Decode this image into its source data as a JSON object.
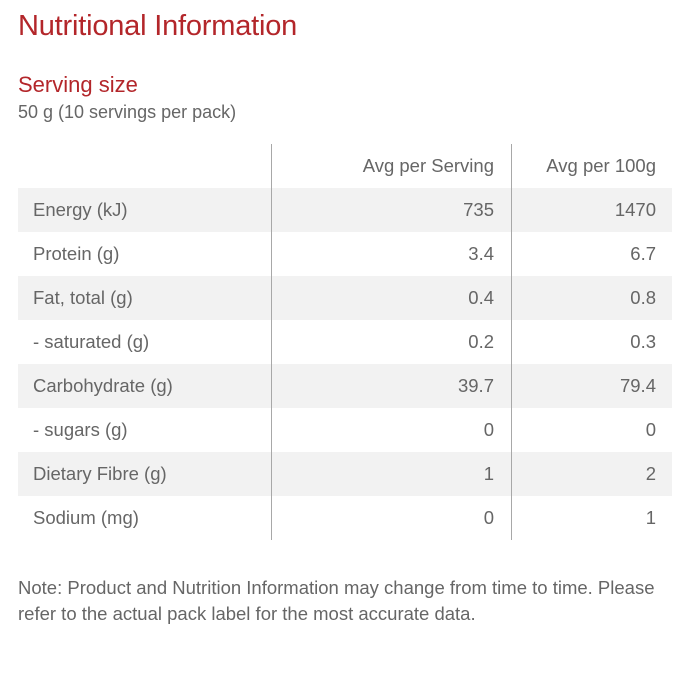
{
  "title": "Nutritional Information",
  "serving": {
    "heading": "Serving size",
    "value": "50 g (10 servings per pack)"
  },
  "table": {
    "headers": [
      "",
      "Avg per Serving",
      "Avg per 100g"
    ],
    "rows": [
      {
        "name": "Energy (kJ)",
        "serving": "735",
        "per100": "1470"
      },
      {
        "name": "Protein (g)",
        "serving": "3.4",
        "per100": "6.7"
      },
      {
        "name": "Fat, total (g)",
        "serving": "0.4",
        "per100": "0.8"
      },
      {
        "name": "- saturated (g)",
        "serving": "0.2",
        "per100": "0.3"
      },
      {
        "name": "Carbohydrate (g)",
        "serving": "39.7",
        "per100": "79.4"
      },
      {
        "name": "- sugars (g)",
        "serving": "0",
        "per100": "0"
      },
      {
        "name": "Dietary Fibre (g)",
        "serving": "1",
        "per100": "2"
      },
      {
        "name": "Sodium (mg)",
        "serving": "0",
        "per100": "1"
      }
    ]
  },
  "note": "Note: Product and Nutrition Information may change from time to time. Please refer to the actual pack label for the most accurate data.",
  "colors": {
    "heading": "#b3262a",
    "text": "#666666",
    "row_shade": "#f2f2f2",
    "divider": "#a8a8a8"
  }
}
